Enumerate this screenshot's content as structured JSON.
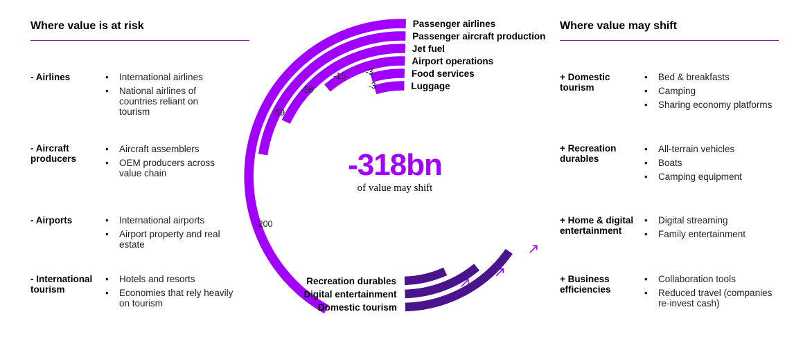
{
  "left": {
    "title": "Where value is at risk",
    "groups": [
      {
        "label": "- Airlines",
        "items": [
          "International airlines",
          "National airlines of countries reliant on tourism"
        ]
      },
      {
        "label": "- Aircraft producers",
        "items": [
          "Aircraft assemblers",
          "OEM producers across value chain"
        ]
      },
      {
        "label": "- Airports",
        "items": [
          "International airports",
          "Airport property and real estate"
        ]
      },
      {
        "label": "- International tourism",
        "items": [
          "Hotels and resorts",
          "Economies that rely heavily on tourism"
        ]
      }
    ]
  },
  "right": {
    "title": "Where value may shift",
    "groups": [
      {
        "label": "+ Domestic tourism",
        "items": [
          "Bed & breakfasts",
          "Camping",
          "Sharing economy platforms"
        ]
      },
      {
        "label": "+ Recreation durables",
        "items": [
          "All-terrain vehicles",
          "Boats",
          "Camping equipment"
        ]
      },
      {
        "label": "+ Home & digital entertainment",
        "items": [
          "Digital streaming",
          "Family entertainment"
        ]
      },
      {
        "label": "+ Business efficiencies",
        "items": [
          "Collaboration tools",
          "Reduced travel (companies re-invest cash)"
        ]
      }
    ]
  },
  "center": {
    "headline": "-318bn",
    "subline": "of value may shift"
  },
  "colors": {
    "risk_bar": "#a100ff",
    "shift_bar": "#4a148c",
    "rule": "#7b1fa2",
    "arrow": "#a100ff"
  },
  "chart_data": {
    "type": "radial-bar",
    "risk": {
      "categories": [
        "Passenger airlines",
        "Passenger aircraft production",
        "Jet fuel",
        "Airport operations",
        "Food services",
        "Luggage"
      ],
      "values": [
        -200,
        -59,
        -38,
        -15,
        -3,
        -3
      ],
      "value_labels": [
        "-200",
        "-59",
        "-38",
        "-15",
        "-3",
        "-3"
      ]
    },
    "shift": {
      "categories": [
        "Recreation durables",
        "Digital entertainment",
        "Domestic tourism"
      ],
      "direction": "up"
    }
  }
}
